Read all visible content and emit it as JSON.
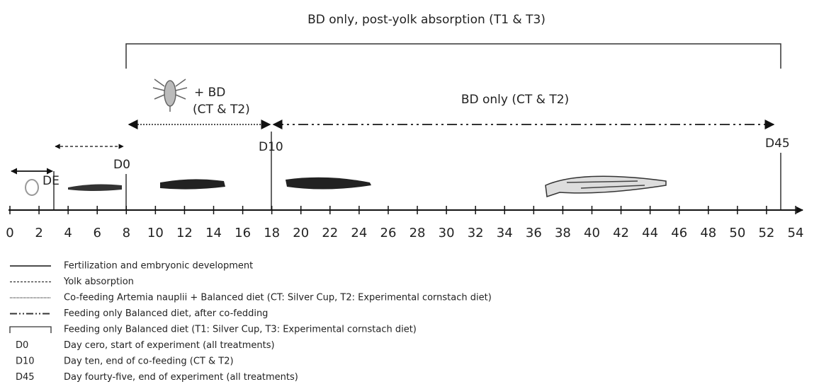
{
  "top_bracket_label": "BD only, post-yolk absorption (T1 & T3)",
  "cofeeding_label": [
    "+ BD",
    "(CT & T2)"
  ],
  "bd_only_label": "BD only (CT & T2)",
  "markers": {
    "de": "DE",
    "d0": "D0",
    "d10": "D10",
    "d45": "D45"
  },
  "axis": {
    "ticks": [
      0,
      2,
      4,
      6,
      8,
      10,
      12,
      14,
      16,
      18,
      20,
      22,
      24,
      26,
      28,
      30,
      32,
      34,
      36,
      38,
      40,
      42,
      44,
      46,
      48,
      50,
      52,
      54
    ]
  },
  "legend": [
    {
      "text": "Fertilization and embryonic development"
    },
    {
      "text": "Yolk absorption"
    },
    {
      "text": "Co-feeding Artemia nauplii + Balanced diet (CT: Silver Cup, T2: Experimental cornstach diet)"
    },
    {
      "text": "Feeding only Balanced diet, after co-fedding"
    },
    {
      "text": "Feeding only Balanced diet (T1: Silver Cup, T3: Experimental cornstach diet)"
    },
    {
      "key": "D0",
      "text": "Day cero, start of experiment (all treatments)"
    },
    {
      "key": "D10",
      "text": "Day ten, end of co-feeding (CT & T2)"
    },
    {
      "key": "D45",
      "text": "Day fourty-five, end of experiment (all treatments)"
    }
  ]
}
